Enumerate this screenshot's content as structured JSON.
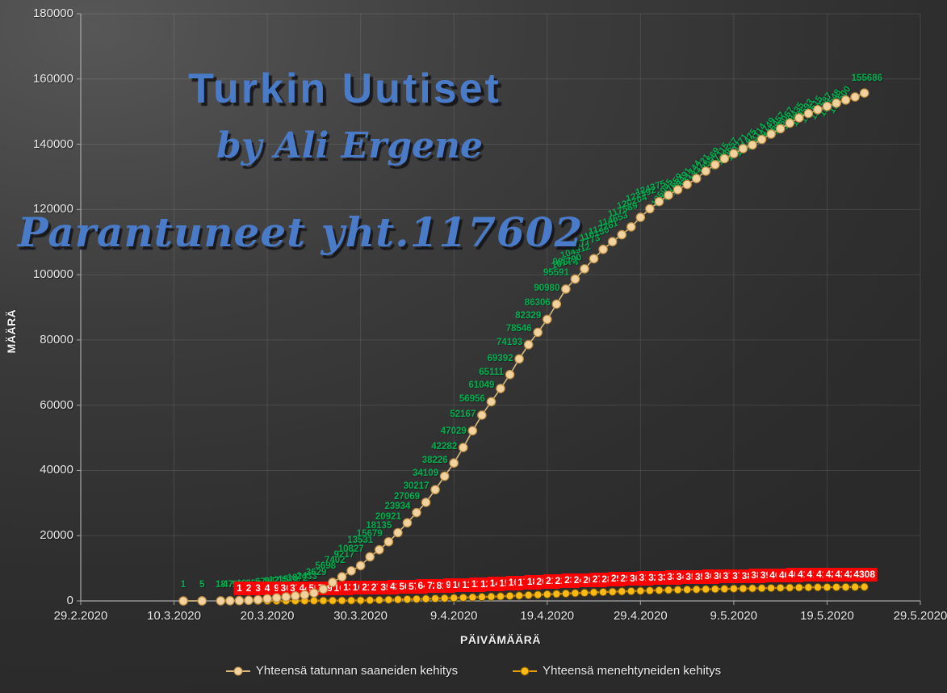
{
  "overlay": {
    "title": "Turkin Uutiset",
    "subtitle": "by Ali Ergene",
    "annotation": "Parantuneet yht.117602"
  },
  "colors": {
    "background_dark": "#2e2e2e",
    "background_light": "#575757",
    "gridline": "rgba(220,220,220,0.13)",
    "axis": "#a8a8a8",
    "watermark_blue": "#4a7bc8",
    "cases_label_green": "#00b050",
    "deaths_label_red_bg": "#fe0000",
    "cases_line": "#d8b87c",
    "cases_marker": "#f2d3a0",
    "deaths_line": "#e89c00",
    "deaths_marker": "#fdba12",
    "tick_text": "#e8e8e8"
  },
  "chart_data": {
    "type": "line",
    "title": "",
    "xlabel": "PÄIVÄMÄÄRÄ",
    "ylabel": "MÄÄRÄ",
    "ylim": [
      0,
      180000
    ],
    "ytick_step": 20000,
    "xlim_days": [
      0,
      90
    ],
    "xtick_labels": [
      "29.2.2020",
      "10.3.2020",
      "20.3.2020",
      "30.3.2020",
      "9.4.2020",
      "19.4.2020",
      "29.4.2020",
      "9.5.2020",
      "19.5.2020",
      "29.5.2020"
    ],
    "ytick_labels": [
      "0",
      "20000",
      "40000",
      "60000",
      "80000",
      "100000",
      "120000",
      "140000",
      "160000",
      "180000"
    ],
    "grid": true,
    "legend_position": "bottom",
    "legend": [
      "Yhteensä tatunnan saaneiden kehitys",
      "Yhteensä menehtyneiden kehitys"
    ],
    "series": [
      {
        "name": "Yhteensä tatunnan saaneiden kehitys",
        "label_color": "#00b050",
        "points": [
          [
            11,
            1
          ],
          [
            13,
            5
          ],
          [
            15,
            18
          ],
          [
            16,
            47
          ],
          [
            17,
            98
          ],
          [
            18,
            191
          ],
          [
            19,
            359
          ],
          [
            20,
            670
          ],
          [
            21,
            947
          ],
          [
            22,
            1236
          ],
          [
            23,
            1529
          ],
          [
            24,
            1872
          ],
          [
            25,
            2433
          ],
          [
            26,
            3629
          ],
          [
            27,
            5698
          ],
          [
            28,
            7402
          ],
          [
            29,
            9217
          ],
          [
            30,
            10827
          ],
          [
            31,
            13531
          ],
          [
            32,
            15679
          ],
          [
            33,
            18135
          ],
          [
            34,
            20921
          ],
          [
            35,
            23934
          ],
          [
            36,
            27069
          ],
          [
            37,
            30217
          ],
          [
            38,
            34109
          ],
          [
            39,
            38226
          ],
          [
            40,
            42282
          ],
          [
            41,
            47029
          ],
          [
            42,
            52167
          ],
          [
            43,
            56956
          ],
          [
            44,
            61049
          ],
          [
            45,
            65111
          ],
          [
            46,
            69392
          ],
          [
            47,
            74193
          ],
          [
            48,
            78546
          ],
          [
            49,
            82329
          ],
          [
            50,
            86306
          ],
          [
            51,
            90980
          ],
          [
            52,
            95591
          ],
          [
            53,
            98674
          ],
          [
            54,
            101790
          ],
          [
            55,
            104912
          ],
          [
            56,
            107773
          ],
          [
            57,
            110130
          ],
          [
            58,
            112261
          ],
          [
            59,
            114653
          ],
          [
            60,
            117589
          ],
          [
            61,
            120204
          ],
          [
            62,
            122392
          ],
          [
            63,
            124375
          ],
          [
            64,
            126045
          ],
          [
            65,
            127659
          ],
          [
            66,
            129491
          ],
          [
            67,
            131744
          ],
          [
            68,
            133721
          ],
          [
            69,
            135569
          ],
          [
            70,
            137115
          ],
          [
            71,
            138657
          ],
          [
            72,
            139771
          ],
          [
            73,
            141475
          ],
          [
            74,
            143114
          ],
          [
            75,
            144749
          ],
          [
            76,
            146457
          ],
          [
            77,
            148067
          ],
          [
            78,
            149435
          ],
          [
            79,
            150593
          ],
          [
            80,
            151615
          ],
          [
            81,
            152587
          ],
          [
            82,
            153548
          ],
          [
            83,
            154500
          ],
          [
            84,
            155686
          ]
        ]
      },
      {
        "name": "Yhteensä menehtyneiden kehitys",
        "label_color": "#ffffff",
        "label_bg": "#fe0000",
        "points": [
          [
            17,
            1
          ],
          [
            18,
            2
          ],
          [
            19,
            3
          ],
          [
            20,
            4
          ],
          [
            21,
            9
          ],
          [
            22,
            30
          ],
          [
            23,
            37
          ],
          [
            24,
            44
          ],
          [
            25,
            59
          ],
          [
            26,
            75
          ],
          [
            27,
            92
          ],
          [
            28,
            108
          ],
          [
            29,
            131
          ],
          [
            30,
            168
          ],
          [
            31,
            214
          ],
          [
            32,
            277
          ],
          [
            33,
            356
          ],
          [
            34,
            425
          ],
          [
            35,
            501
          ],
          [
            36,
            574
          ],
          [
            37,
            649
          ],
          [
            38,
            725
          ],
          [
            39,
            812
          ],
          [
            40,
            908
          ],
          [
            41,
            1006
          ],
          [
            42,
            1101
          ],
          [
            43,
            1198
          ],
          [
            44,
            1296
          ],
          [
            45,
            1403
          ],
          [
            46,
            1518
          ],
          [
            47,
            1643
          ],
          [
            48,
            1769
          ],
          [
            49,
            1890
          ],
          [
            50,
            2017
          ],
          [
            51,
            2140
          ],
          [
            52,
            2259
          ],
          [
            53,
            2376
          ],
          [
            54,
            2491
          ],
          [
            55,
            2600
          ],
          [
            56,
            2706
          ],
          [
            57,
            2805
          ],
          [
            58,
            2900
          ],
          [
            59,
            2992
          ],
          [
            60,
            3081
          ],
          [
            61,
            3174
          ],
          [
            62,
            3258
          ],
          [
            63,
            3336
          ],
          [
            64,
            3397
          ],
          [
            65,
            3461
          ],
          [
            66,
            3520
          ],
          [
            67,
            3584
          ],
          [
            68,
            3641
          ],
          [
            69,
            3689
          ],
          [
            70,
            3739
          ],
          [
            71,
            3786
          ],
          [
            72,
            3841
          ],
          [
            73,
            3894
          ],
          [
            74,
            3952
          ],
          [
            75,
            4007
          ],
          [
            76,
            4055
          ],
          [
            77,
            4096
          ],
          [
            78,
            4140
          ],
          [
            79,
            4171
          ],
          [
            80,
            4199
          ],
          [
            81,
            4222
          ],
          [
            82,
            4249
          ],
          [
            83,
            4276
          ],
          [
            84,
            4308
          ]
        ]
      }
    ]
  }
}
